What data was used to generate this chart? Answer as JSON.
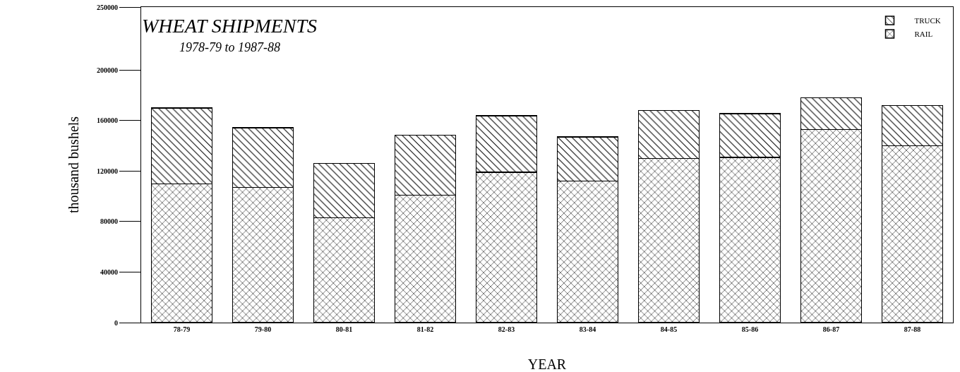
{
  "chart_data": {
    "type": "bar",
    "title": "WHEAT SHIPMENTS",
    "subtitle": "1978-79 to 1987-88",
    "xlabel": "YEAR",
    "ylabel": "thousand bushels",
    "categories": [
      "78-79",
      "79-80",
      "80-81",
      "81-82",
      "82-83",
      "83-84",
      "84-85",
      "85-86",
      "86-87",
      "87-88"
    ],
    "stacked": true,
    "series": [
      {
        "name": "RAIL",
        "color": "#000000",
        "values": [
          110000,
          107000,
          83000,
          101000,
          119000,
          112000,
          130000,
          131000,
          153000,
          140000
        ]
      },
      {
        "name": "TRUCK",
        "color": "#000000",
        "values": [
          60000,
          47500,
          43000,
          47500,
          45000,
          35000,
          38000,
          34500,
          25000,
          32000
        ]
      }
    ],
    "ylim": [
      0,
      250000
    ],
    "yticks": [
      0,
      40000,
      80000,
      120000,
      160000,
      200000,
      250000
    ],
    "grid": false,
    "legend": "top right"
  }
}
